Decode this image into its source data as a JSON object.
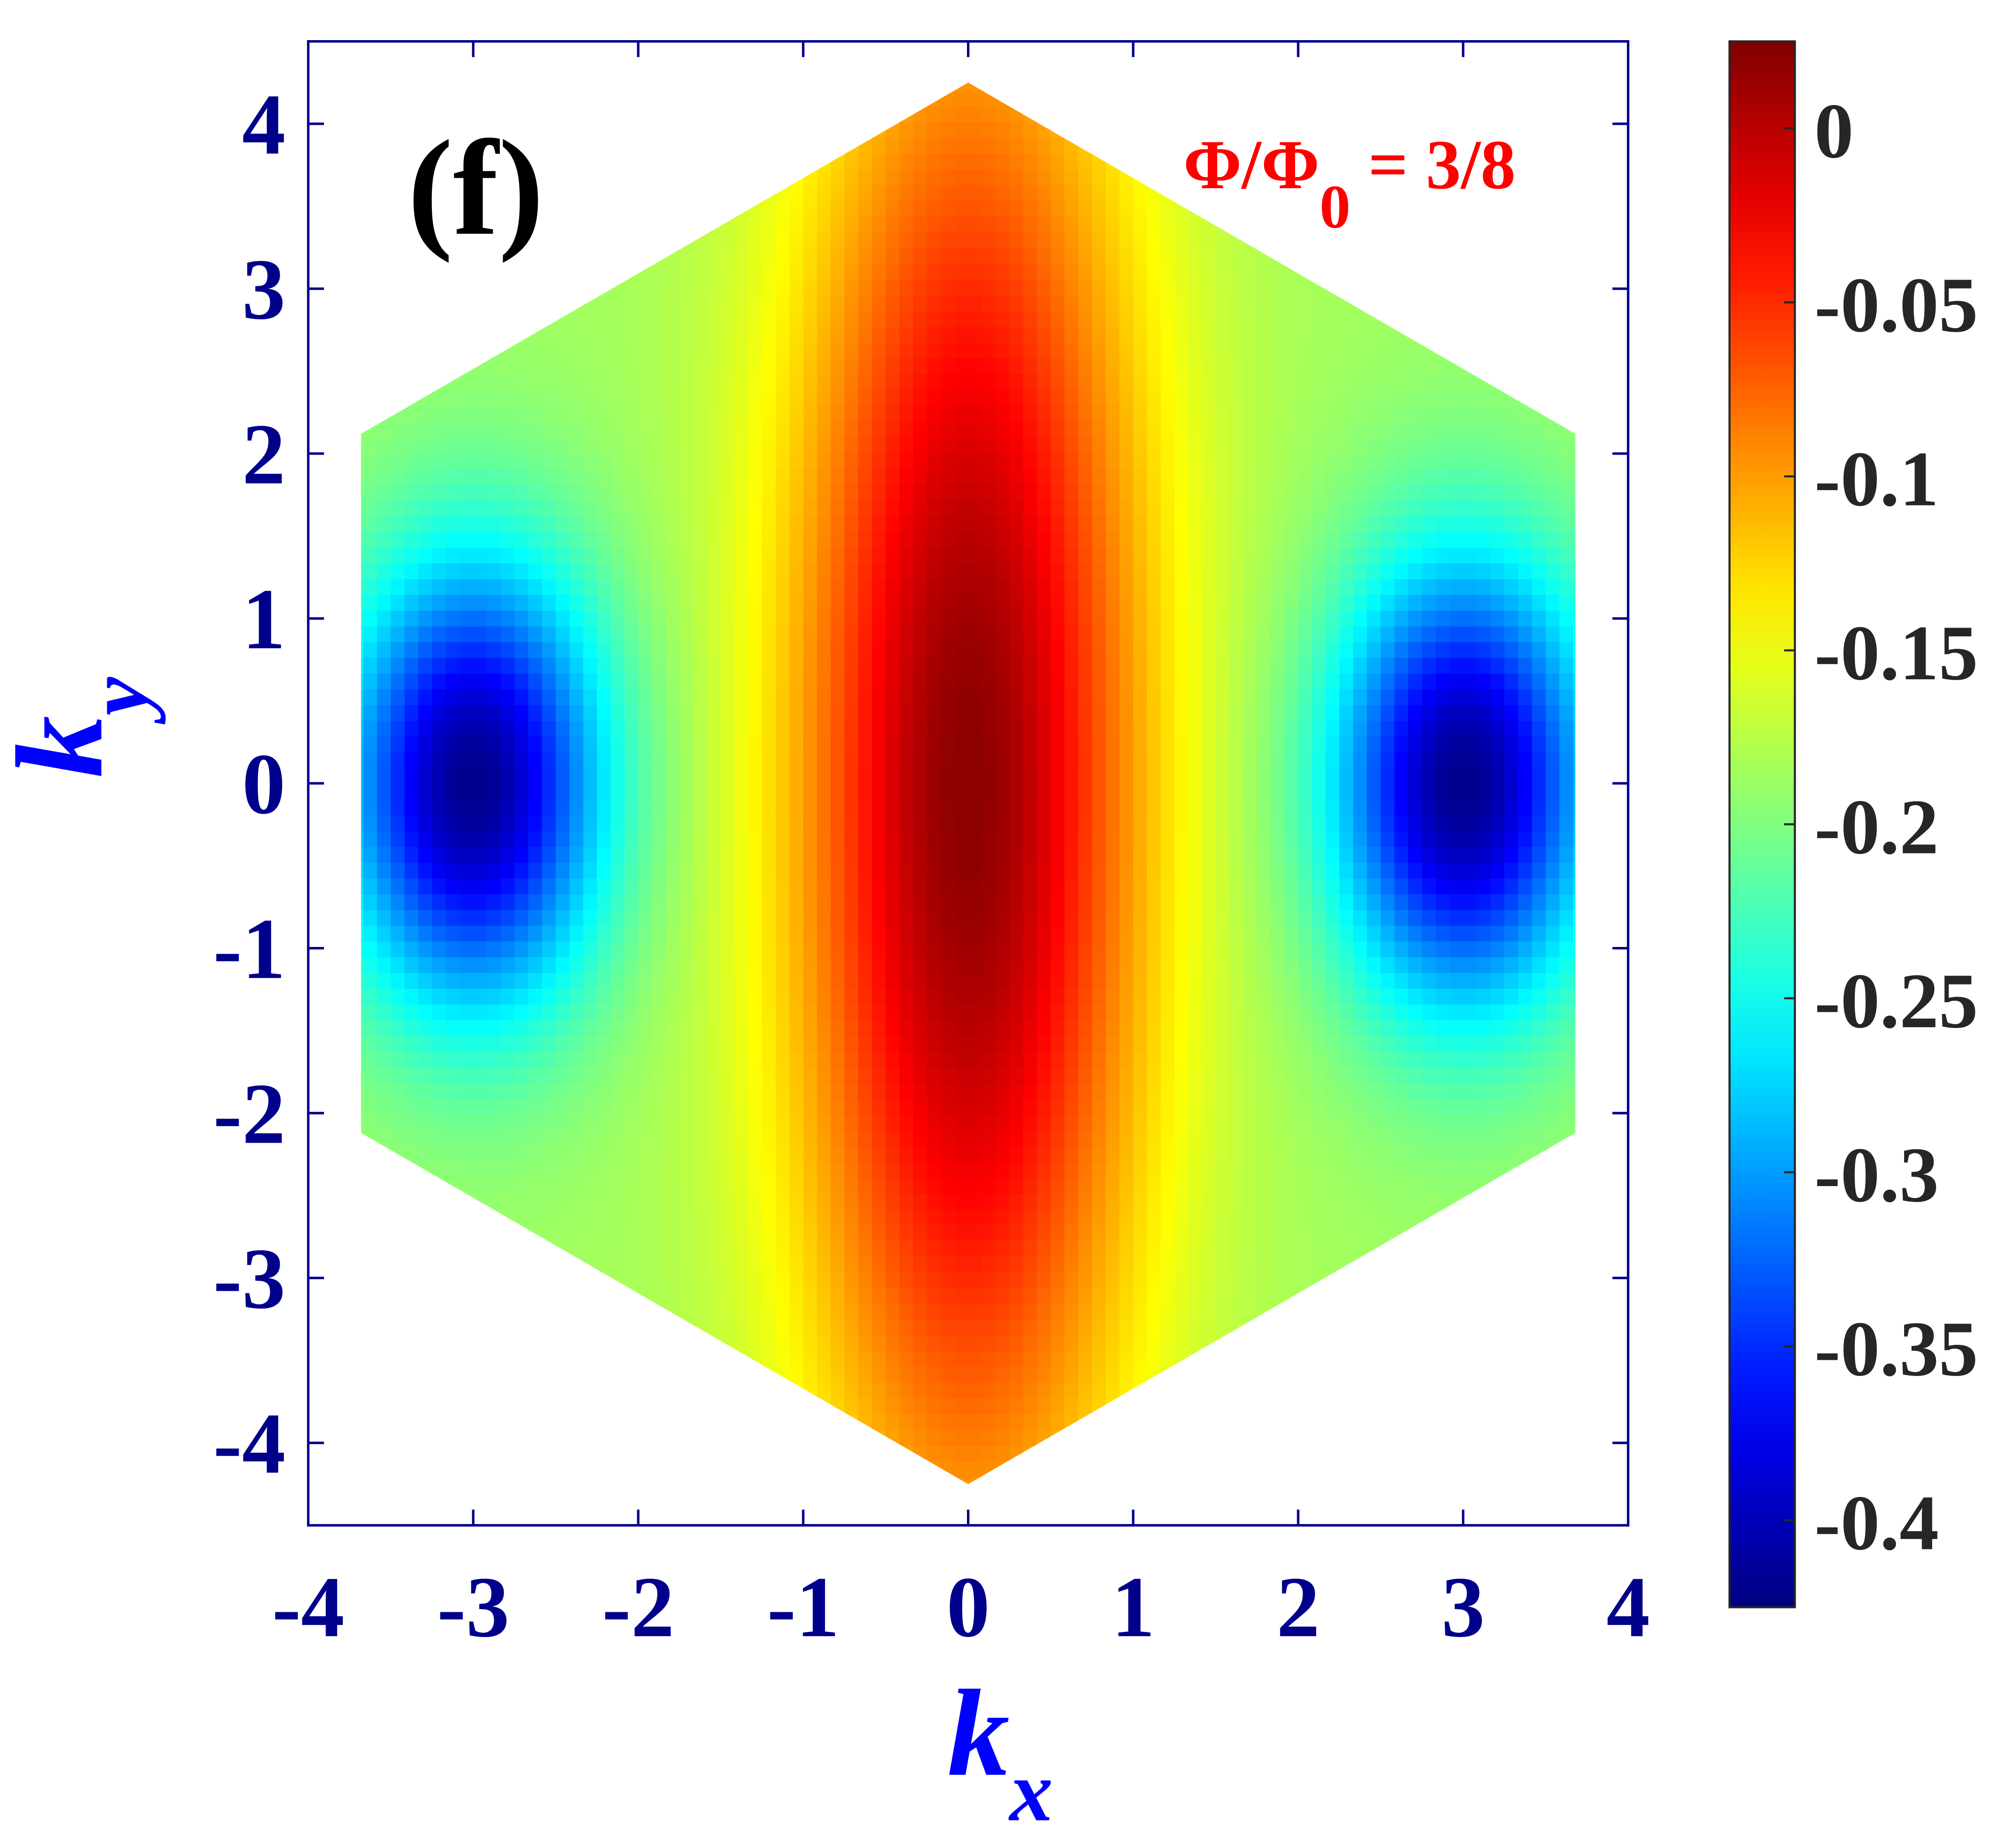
{
  "chart_data": {
    "type": "heatmap",
    "panel_label": "(f)",
    "annotation": {
      "text_main": "Φ/Φ",
      "text_sub": "0",
      "text_tail": " = 3/8",
      "color": "#ff0000"
    },
    "xlabel": {
      "main": "k",
      "sub": "x"
    },
    "ylabel": {
      "main": "k",
      "sub": "y"
    },
    "xlim": [
      -4,
      4
    ],
    "ylim": [
      -4.5,
      4.5
    ],
    "xticks": [
      -4,
      -3,
      -2,
      -1,
      0,
      1,
      2,
      3,
      4
    ],
    "xtick_labels": [
      "-4",
      "-3",
      "-2",
      "-1",
      "0",
      "1",
      "2",
      "3",
      "4"
    ],
    "yticks": [
      -4,
      -3,
      -2,
      -1,
      0,
      1,
      2,
      3,
      4
    ],
    "ytick_labels": [
      "-4",
      "-3",
      "-2",
      "-1",
      "0",
      "1",
      "2",
      "3",
      "4"
    ],
    "grid": false,
    "domain_shape": "hexagonal Brillouin zone",
    "domain_vertices": [
      [
        0,
        4.25
      ],
      [
        3.68,
        2.12
      ],
      [
        3.68,
        -2.12
      ],
      [
        0,
        -4.25
      ],
      [
        -3.68,
        -2.12
      ],
      [
        -3.68,
        2.12
      ]
    ],
    "colorbar": {
      "colormap": "jet",
      "range": [
        -0.425,
        0.025
      ],
      "ticks": [
        0,
        -0.05,
        -0.1,
        -0.15,
        -0.2,
        -0.25,
        -0.3,
        -0.35,
        -0.4
      ],
      "tick_labels": [
        "0",
        "-0.05",
        "-0.1",
        "-0.15",
        "-0.2",
        "-0.25",
        "-0.3",
        "-0.35",
        "-0.4"
      ]
    },
    "features": [
      {
        "kx": 0,
        "ky": 0,
        "value": 0.02,
        "note": "maximum, elongated along ky"
      },
      {
        "kx": -3,
        "ky": 0,
        "value": -0.42,
        "note": "minimum"
      },
      {
        "kx": 3,
        "ky": 0,
        "value": -0.42,
        "note": "minimum"
      }
    ],
    "colors": {
      "axis": "#00008b",
      "tick_labels": "#00008b",
      "axis_labels": "#0000ff",
      "panel_label": "#000000",
      "colorbar_labels": "#262626"
    }
  }
}
